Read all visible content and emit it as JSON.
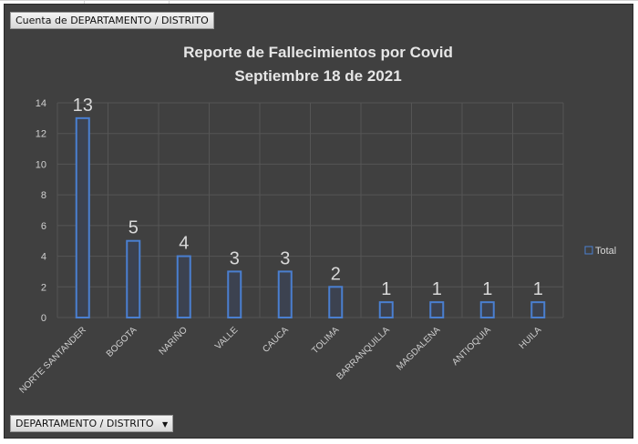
{
  "value_field_button": "Cuenta de DEPARTAMENTO  / DISTRITO",
  "axis_field_button": "DEPARTAMENTO  / DISTRITO",
  "axis_field_dropdown_icon": "triangle-down-icon",
  "chart_data": {
    "type": "bar",
    "title": [
      "Reporte de Fallecimientos por Covid",
      "Septiembre 18 de 2021"
    ],
    "categories": [
      "NORTE SANTANDER",
      "BOGOTA",
      "NARIÑO",
      "VALLE",
      "CAUCA",
      "TOLIMA",
      "BARRANQUILLA",
      "MAGDALENA",
      "ANTIOQUIA",
      "HUILA"
    ],
    "series": [
      {
        "name": "Total",
        "values": [
          13,
          5,
          4,
          3,
          3,
          2,
          1,
          1,
          1,
          1
        ]
      }
    ],
    "ylim": [
      0,
      14
    ],
    "yticks": [
      0,
      2,
      4,
      6,
      8,
      10,
      12,
      14
    ],
    "grid": true,
    "legend": "right",
    "data_labels": true,
    "colors": {
      "background": "#404040",
      "bar_outline": "#4a7fd0",
      "text": "#d9d9d9"
    }
  }
}
